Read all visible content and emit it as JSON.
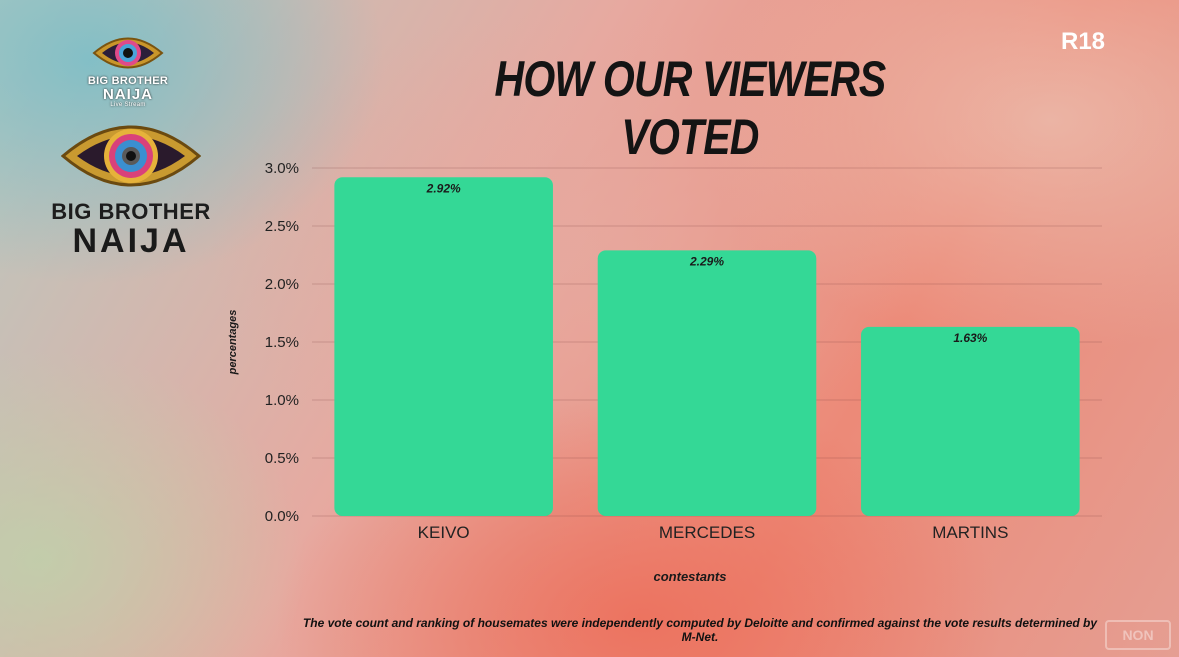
{
  "branding": {
    "rating_badge": "R18",
    "small_logo": {
      "line1": "BIG BROTHER",
      "line2": "NAIJA",
      "line3": "Live Stream"
    },
    "big_logo": {
      "line1": "BIG BROTHER",
      "line2": "NAIJA"
    },
    "watermark": "NON"
  },
  "footnote": "The vote count and ranking of housemates were independently computed by Deloitte and confirmed against the vote results determined by M-Net.",
  "colors": {
    "bar": "#34d896",
    "grid": "rgba(120,60,60,0.25)",
    "text": "#1a1a1a"
  },
  "chart_data": {
    "type": "bar",
    "title": "HOW OUR VIEWERS VOTED",
    "xlabel": "contestants",
    "ylabel": "percentages",
    "categories": [
      "KEIVO",
      "MERCEDES",
      "MARTINS"
    ],
    "values": [
      2.92,
      2.29,
      1.63
    ],
    "data_labels": [
      "2.92%",
      "2.29%",
      "1.63%"
    ],
    "yticks": [
      "0.0%",
      "0.5%",
      "1.0%",
      "1.5%",
      "2.0%",
      "2.5%",
      "3.0%"
    ],
    "ytick_values": [
      0,
      0.5,
      1.0,
      1.5,
      2.0,
      2.5,
      3.0
    ],
    "ylim": [
      0,
      3.0
    ],
    "grid": true
  }
}
